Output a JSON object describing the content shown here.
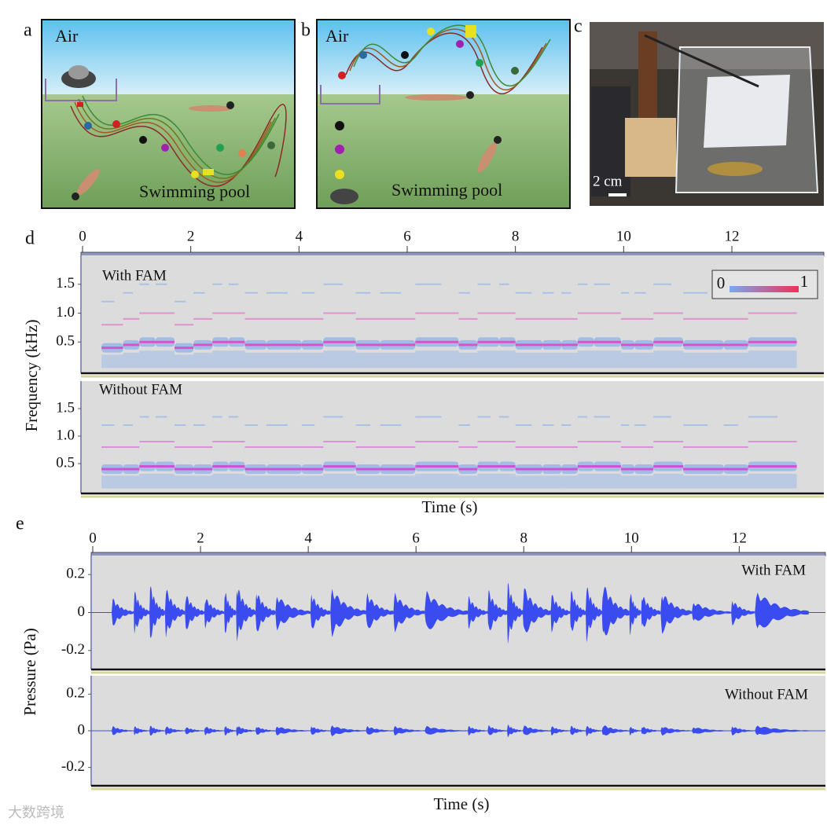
{
  "panel_labels": [
    "a",
    "b",
    "c",
    "d",
    "e"
  ],
  "illustrations": [
    {
      "air": "Air",
      "pool": "Swimming pool"
    },
    {
      "air": "Air",
      "pool": "Swimming pool"
    }
  ],
  "photo": {
    "scale_bar": "2 cm"
  },
  "watermark": "大数跨境",
  "chart_data": [
    {
      "type": "spectrogram",
      "xlabel": "Time (s)",
      "ylabel": "Frequency (kHz)",
      "xlim": [
        0,
        13.7
      ],
      "xticks": [
        0,
        2,
        4,
        6,
        8,
        10,
        12
      ],
      "ylim": [
        0,
        2
      ],
      "yticks": [
        0.5,
        {
          "value": 1,
          "label": "1.0"
        },
        1.5
      ],
      "colorbar": {
        "min": 0,
        "max": 1,
        "colors": [
          "#7aa8ee",
          "#f0305a"
        ]
      },
      "subplots": [
        {
          "title": "With FAM",
          "color": "#e23cc0",
          "times": [
            0.35,
            0.75,
            1.05,
            1.35,
            1.7,
            2.05,
            2.4,
            2.7,
            3.0,
            3.4,
            4.05,
            4.45,
            5.05,
            5.5,
            6.15,
            6.95,
            7.3,
            7.7,
            8.0,
            8.5,
            8.85,
            9.15,
            9.45,
            9.95,
            10.2,
            10.55,
            11.1,
            11.85,
            12.3
          ],
          "values": [
            0.4,
            0.45,
            0.5,
            0.5,
            0.4,
            0.45,
            0.5,
            0.5,
            0.45,
            0.45,
            0.45,
            0.5,
            0.45,
            0.45,
            0.5,
            0.45,
            0.5,
            0.5,
            0.45,
            0.45,
            0.45,
            0.5,
            0.5,
            0.45,
            0.45,
            0.5,
            0.45,
            0.45,
            0.5
          ]
        },
        {
          "title": "Without FAM",
          "color": "#d63ad0",
          "times": [
            0.35,
            0.75,
            1.05,
            1.35,
            1.7,
            2.05,
            2.4,
            2.7,
            3.0,
            3.4,
            4.05,
            4.45,
            5.05,
            5.5,
            6.15,
            6.95,
            7.3,
            7.7,
            8.0,
            8.5,
            8.85,
            9.15,
            9.45,
            9.95,
            10.2,
            10.55,
            11.1,
            11.85,
            12.3
          ],
          "values": [
            0.4,
            0.4,
            0.45,
            0.45,
            0.4,
            0.4,
            0.45,
            0.45,
            0.4,
            0.4,
            0.4,
            0.45,
            0.4,
            0.4,
            0.45,
            0.4,
            0.45,
            0.45,
            0.4,
            0.4,
            0.4,
            0.45,
            0.45,
            0.4,
            0.4,
            0.45,
            0.4,
            0.4,
            0.45
          ]
        }
      ]
    },
    {
      "type": "waveform",
      "xlabel": "Time (s)",
      "ylabel": "Pressure (Pa)",
      "xlim": [
        0,
        13.6
      ],
      "xticks": [
        0,
        2,
        4,
        6,
        8,
        10,
        12
      ],
      "ylim": [
        -0.3,
        0.3
      ],
      "yticks": [
        0.2,
        0,
        -0.2
      ],
      "color": "#3a4cf0",
      "subplots": [
        {
          "title": "With FAM",
          "times": [
            0.35,
            0.76,
            1.05,
            1.34,
            1.71,
            2.07,
            2.44,
            2.66,
            3.02,
            3.39,
            4.04,
            4.41,
            5.07,
            5.58,
            6.16,
            6.96,
            7.33,
            7.69,
            7.98,
            8.5,
            8.86,
            9.15,
            9.45,
            9.96,
            10.18,
            10.54,
            11.12,
            11.85,
            12.29
          ],
          "values": [
            0.09,
            0.14,
            0.18,
            0.16,
            0.12,
            0.1,
            0.15,
            0.18,
            0.14,
            0.11,
            0.12,
            0.15,
            0.12,
            0.12,
            0.13,
            0.1,
            0.14,
            0.19,
            0.16,
            0.12,
            0.15,
            0.18,
            0.19,
            0.14,
            0.12,
            0.13,
            0.07,
            0.08,
            0.13
          ]
        },
        {
          "title": "Without FAM",
          "times": [
            0.35,
            0.76,
            1.05,
            1.34,
            1.71,
            2.07,
            2.44,
            2.66,
            3.02,
            3.39,
            4.04,
            4.41,
            5.07,
            5.58,
            6.16,
            6.96,
            7.33,
            7.69,
            7.98,
            8.5,
            8.86,
            9.15,
            9.45,
            9.96,
            10.18,
            10.54,
            11.12,
            11.85,
            12.29
          ],
          "values": [
            0.03,
            0.03,
            0.035,
            0.03,
            0.025,
            0.03,
            0.035,
            0.035,
            0.03,
            0.03,
            0.03,
            0.035,
            0.03,
            0.03,
            0.03,
            0.03,
            0.035,
            0.04,
            0.035,
            0.03,
            0.035,
            0.035,
            0.04,
            0.03,
            0.03,
            0.03,
            0.025,
            0.03,
            0.035
          ]
        }
      ]
    }
  ]
}
